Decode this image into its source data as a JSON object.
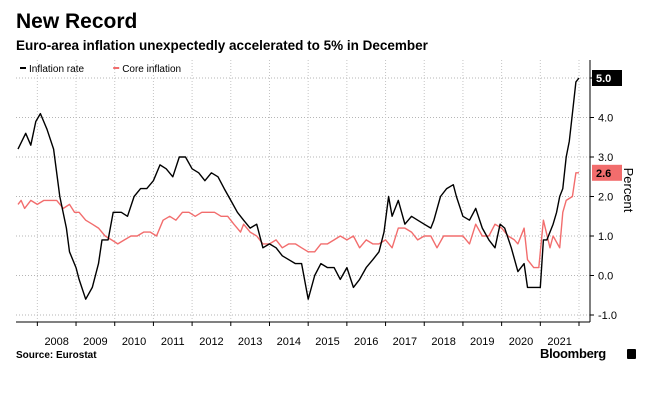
{
  "title": "New Record",
  "subtitle": "Euro-area inflation unexpectedly accelerated to 5% in December",
  "source": "Source: Eurostat",
  "brand": "Bloomberg",
  "chart_data": {
    "type": "line",
    "ylabel": "Percent",
    "ylim": [
      -1.0,
      5.2
    ],
    "yticks": [
      5.0,
      4.0,
      3.0,
      2.0,
      1.0,
      0.0,
      -1.0
    ],
    "xticks": [
      "2008",
      "2009",
      "2010",
      "2011",
      "2012",
      "2013",
      "2014",
      "2015",
      "2016",
      "2017",
      "2018",
      "2019",
      "2020",
      "2021"
    ],
    "legend_position": "top-left",
    "grid": true,
    "series": [
      {
        "name": "Inflation rate",
        "color": "#000000",
        "last_label": "5.0",
        "points": [
          [
            2007.5,
            3.2
          ],
          [
            2007.7,
            3.6
          ],
          [
            2007.83,
            3.3
          ],
          [
            2007.96,
            3.9
          ],
          [
            2008.08,
            4.1
          ],
          [
            2008.25,
            3.7
          ],
          [
            2008.42,
            3.2
          ],
          [
            2008.58,
            2.0
          ],
          [
            2008.75,
            1.2
          ],
          [
            2008.83,
            0.6
          ],
          [
            2009.0,
            0.2
          ],
          [
            2009.08,
            -0.1
          ],
          [
            2009.25,
            -0.6
          ],
          [
            2009.42,
            -0.3
          ],
          [
            2009.58,
            0.3
          ],
          [
            2009.67,
            0.9
          ],
          [
            2009.83,
            0.9
          ],
          [
            2009.96,
            1.6
          ],
          [
            2010.17,
            1.6
          ],
          [
            2010.33,
            1.5
          ],
          [
            2010.5,
            2.0
          ],
          [
            2010.67,
            2.2
          ],
          [
            2010.83,
            2.2
          ],
          [
            2011.0,
            2.4
          ],
          [
            2011.17,
            2.8
          ],
          [
            2011.33,
            2.7
          ],
          [
            2011.5,
            2.5
          ],
          [
            2011.67,
            3.0
          ],
          [
            2011.83,
            3.0
          ],
          [
            2012.0,
            2.7
          ],
          [
            2012.17,
            2.6
          ],
          [
            2012.33,
            2.4
          ],
          [
            2012.5,
            2.6
          ],
          [
            2012.67,
            2.5
          ],
          [
            2012.83,
            2.2
          ],
          [
            2013.0,
            1.9
          ],
          [
            2013.17,
            1.6
          ],
          [
            2013.33,
            1.4
          ],
          [
            2013.5,
            1.2
          ],
          [
            2013.67,
            1.3
          ],
          [
            2013.83,
            0.7
          ],
          [
            2014.0,
            0.8
          ],
          [
            2014.17,
            0.7
          ],
          [
            2014.33,
            0.5
          ],
          [
            2014.5,
            0.4
          ],
          [
            2014.67,
            0.3
          ],
          [
            2014.83,
            0.3
          ],
          [
            2015.0,
            -0.6
          ],
          [
            2015.17,
            0.0
          ],
          [
            2015.33,
            0.3
          ],
          [
            2015.5,
            0.2
          ],
          [
            2015.67,
            0.2
          ],
          [
            2015.83,
            -0.1
          ],
          [
            2016.0,
            0.2
          ],
          [
            2016.17,
            -0.3
          ],
          [
            2016.33,
            -0.1
          ],
          [
            2016.5,
            0.2
          ],
          [
            2016.67,
            0.4
          ],
          [
            2016.83,
            0.6
          ],
          [
            2016.96,
            1.1
          ],
          [
            2017.08,
            2.0
          ],
          [
            2017.17,
            1.5
          ],
          [
            2017.33,
            1.9
          ],
          [
            2017.5,
            1.3
          ],
          [
            2017.67,
            1.5
          ],
          [
            2017.83,
            1.4
          ],
          [
            2018.0,
            1.3
          ],
          [
            2018.17,
            1.2
          ],
          [
            2018.25,
            1.4
          ],
          [
            2018.42,
            2.0
          ],
          [
            2018.58,
            2.2
          ],
          [
            2018.75,
            2.3
          ],
          [
            2018.83,
            2.0
          ],
          [
            2019.0,
            1.5
          ],
          [
            2019.17,
            1.4
          ],
          [
            2019.33,
            1.7
          ],
          [
            2019.5,
            1.2
          ],
          [
            2019.67,
            0.9
          ],
          [
            2019.83,
            0.7
          ],
          [
            2019.96,
            1.3
          ],
          [
            2020.08,
            1.2
          ],
          [
            2020.25,
            0.7
          ],
          [
            2020.42,
            0.1
          ],
          [
            2020.58,
            0.3
          ],
          [
            2020.67,
            -0.3
          ],
          [
            2020.83,
            -0.3
          ],
          [
            2021.0,
            -0.3
          ],
          [
            2021.08,
            0.9
          ],
          [
            2021.17,
            0.9
          ],
          [
            2021.33,
            1.3
          ],
          [
            2021.42,
            1.6
          ],
          [
            2021.5,
            2.0
          ],
          [
            2021.58,
            2.2
          ],
          [
            2021.67,
            3.0
          ],
          [
            2021.75,
            3.4
          ],
          [
            2021.83,
            4.1
          ],
          [
            2021.92,
            4.9
          ],
          [
            2022.0,
            5.0
          ]
        ]
      },
      {
        "name": "Core inflation",
        "color": "#f26d6d",
        "last_label": "2.6",
        "points": [
          [
            2007.5,
            1.8
          ],
          [
            2007.58,
            1.9
          ],
          [
            2007.67,
            1.7
          ],
          [
            2007.83,
            1.9
          ],
          [
            2008.0,
            1.8
          ],
          [
            2008.17,
            1.9
          ],
          [
            2008.33,
            1.9
          ],
          [
            2008.5,
            1.9
          ],
          [
            2008.67,
            1.7
          ],
          [
            2008.83,
            1.8
          ],
          [
            2008.96,
            1.6
          ],
          [
            2009.08,
            1.6
          ],
          [
            2009.25,
            1.4
          ],
          [
            2009.42,
            1.3
          ],
          [
            2009.58,
            1.2
          ],
          [
            2009.75,
            1.0
          ],
          [
            2009.92,
            0.9
          ],
          [
            2010.08,
            0.8
          ],
          [
            2010.25,
            0.9
          ],
          [
            2010.42,
            1.0
          ],
          [
            2010.58,
            1.0
          ],
          [
            2010.75,
            1.1
          ],
          [
            2010.92,
            1.1
          ],
          [
            2011.08,
            1.0
          ],
          [
            2011.25,
            1.4
          ],
          [
            2011.42,
            1.5
          ],
          [
            2011.58,
            1.4
          ],
          [
            2011.75,
            1.6
          ],
          [
            2011.92,
            1.6
          ],
          [
            2012.08,
            1.5
          ],
          [
            2012.25,
            1.6
          ],
          [
            2012.42,
            1.6
          ],
          [
            2012.58,
            1.6
          ],
          [
            2012.75,
            1.5
          ],
          [
            2012.92,
            1.5
          ],
          [
            2013.08,
            1.3
          ],
          [
            2013.25,
            1.1
          ],
          [
            2013.33,
            1.3
          ],
          [
            2013.5,
            1.1
          ],
          [
            2013.67,
            1.0
          ],
          [
            2013.83,
            0.8
          ],
          [
            2014.0,
            0.8
          ],
          [
            2014.17,
            0.9
          ],
          [
            2014.33,
            0.7
          ],
          [
            2014.5,
            0.8
          ],
          [
            2014.67,
            0.8
          ],
          [
            2014.83,
            0.7
          ],
          [
            2015.0,
            0.6
          ],
          [
            2015.17,
            0.6
          ],
          [
            2015.33,
            0.8
          ],
          [
            2015.5,
            0.8
          ],
          [
            2015.67,
            0.9
          ],
          [
            2015.83,
            1.0
          ],
          [
            2016.0,
            0.9
          ],
          [
            2016.17,
            1.0
          ],
          [
            2016.33,
            0.7
          ],
          [
            2016.5,
            0.9
          ],
          [
            2016.67,
            0.8
          ],
          [
            2016.83,
            0.8
          ],
          [
            2017.0,
            0.9
          ],
          [
            2017.17,
            0.7
          ],
          [
            2017.33,
            1.2
          ],
          [
            2017.5,
            1.2
          ],
          [
            2017.67,
            1.1
          ],
          [
            2017.83,
            0.9
          ],
          [
            2018.0,
            1.0
          ],
          [
            2018.17,
            1.0
          ],
          [
            2018.33,
            0.7
          ],
          [
            2018.5,
            1.0
          ],
          [
            2018.67,
            1.0
          ],
          [
            2018.83,
            1.0
          ],
          [
            2019.0,
            1.0
          ],
          [
            2019.17,
            0.8
          ],
          [
            2019.33,
            1.3
          ],
          [
            2019.5,
            1.0
          ],
          [
            2019.67,
            1.0
          ],
          [
            2019.83,
            1.3
          ],
          [
            2020.0,
            1.2
          ],
          [
            2020.17,
            1.0
          ],
          [
            2020.33,
            0.9
          ],
          [
            2020.42,
            0.8
          ],
          [
            2020.58,
            1.2
          ],
          [
            2020.67,
            0.4
          ],
          [
            2020.83,
            0.2
          ],
          [
            2020.96,
            0.2
          ],
          [
            2021.08,
            1.4
          ],
          [
            2021.25,
            0.7
          ],
          [
            2021.33,
            1.0
          ],
          [
            2021.5,
            0.7
          ],
          [
            2021.58,
            1.6
          ],
          [
            2021.67,
            1.9
          ],
          [
            2021.83,
            2.0
          ],
          [
            2021.92,
            2.6
          ],
          [
            2022.0,
            2.6
          ]
        ]
      }
    ]
  }
}
